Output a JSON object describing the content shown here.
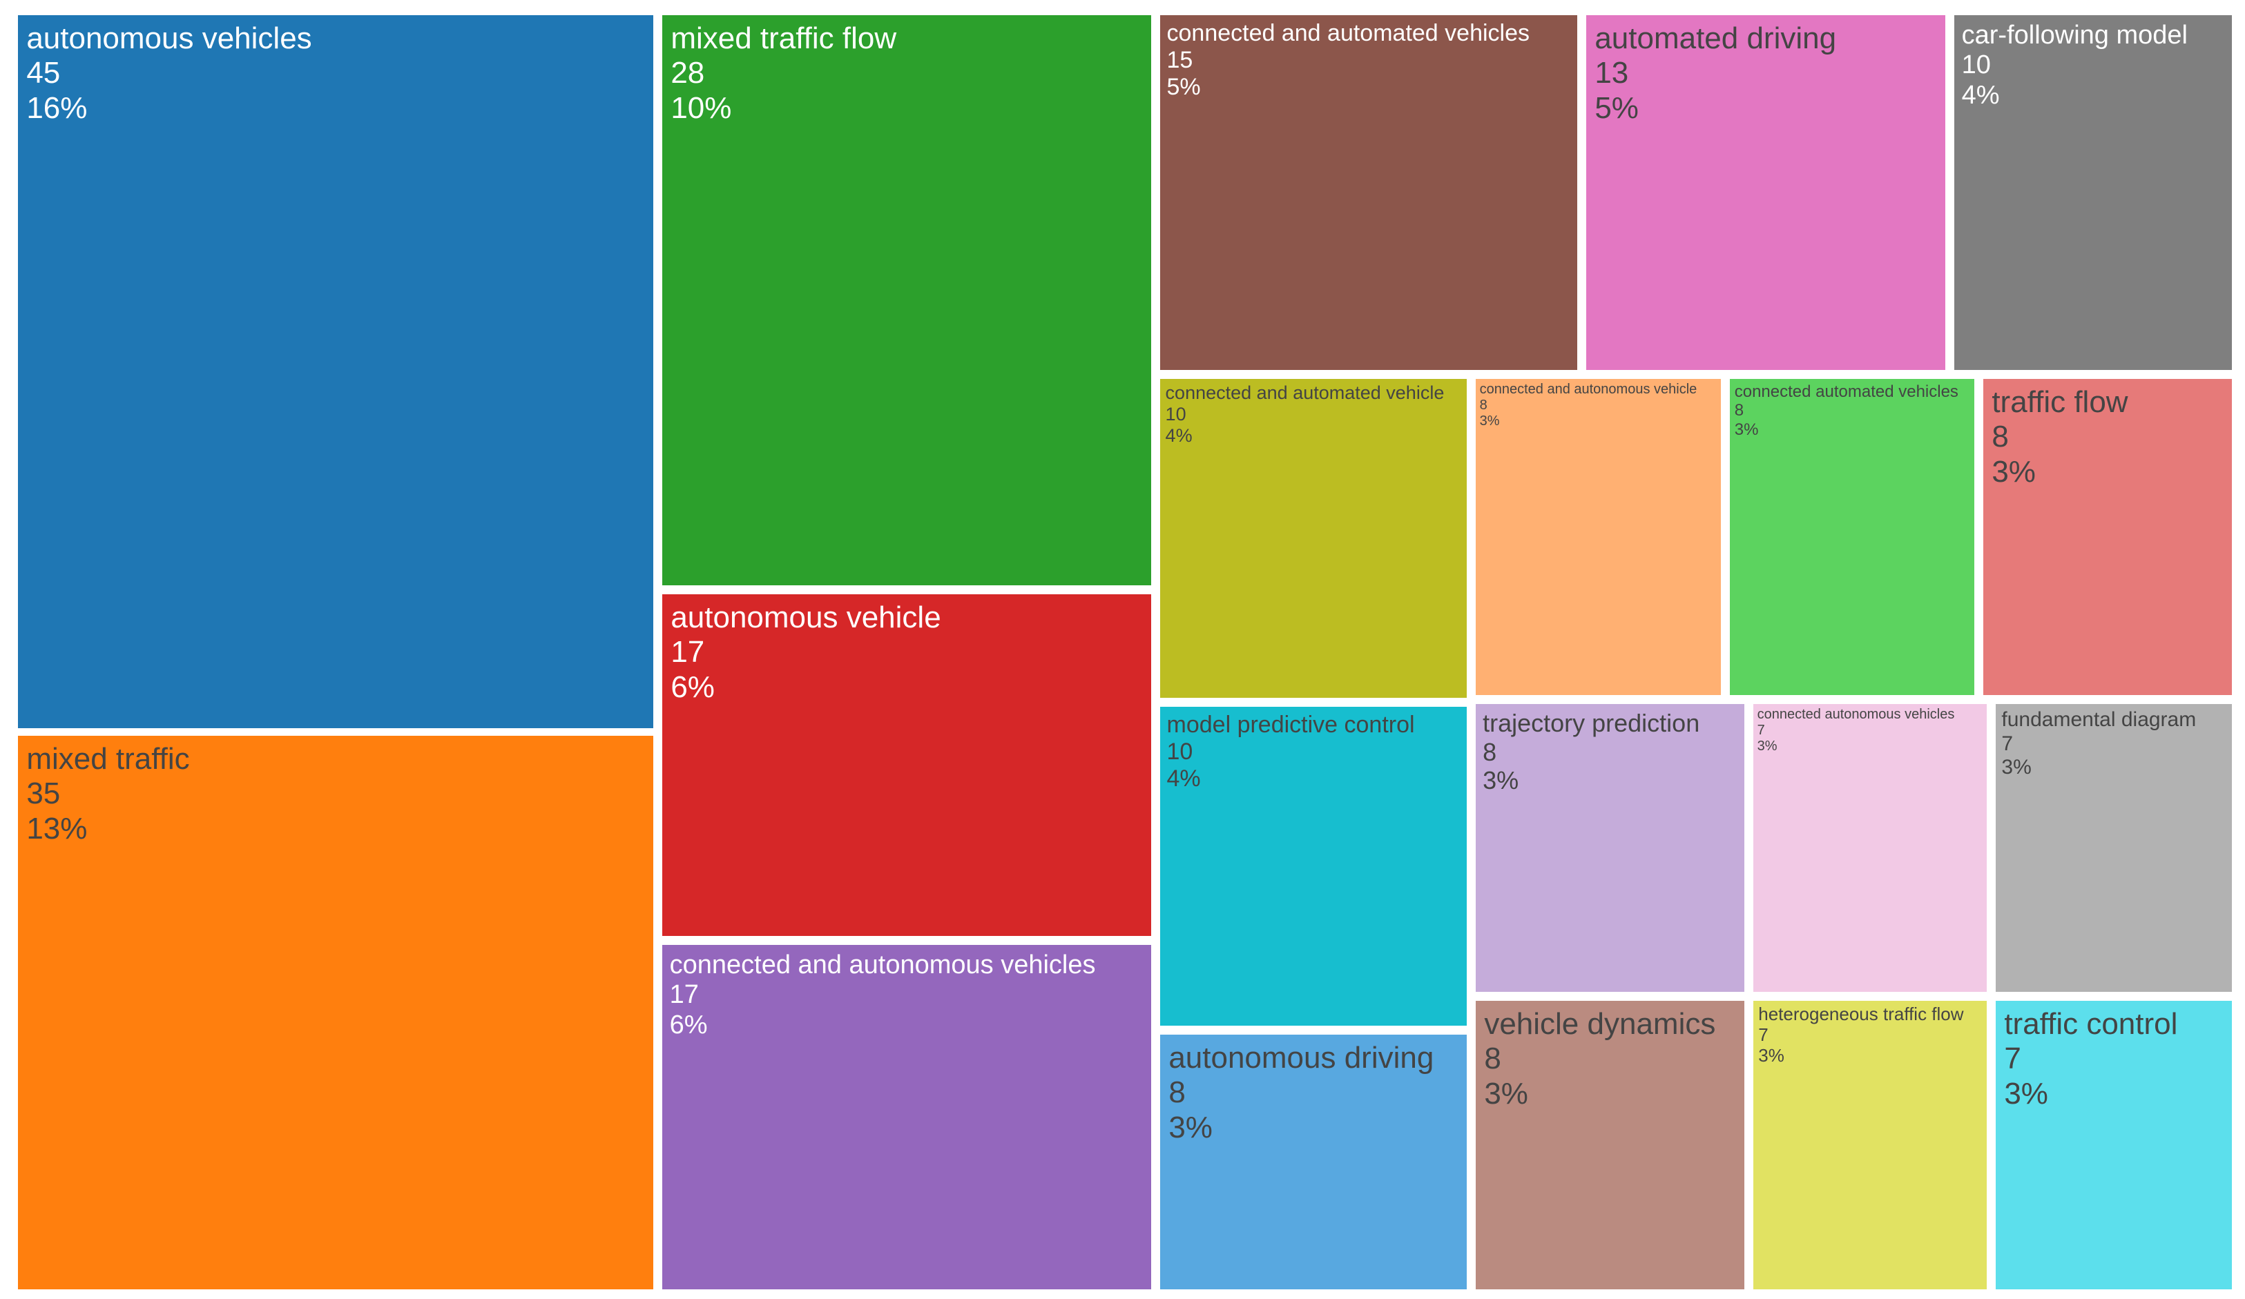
{
  "chart_data": {
    "type": "treemap",
    "items": [
      {
        "label": "autonomous vehicles",
        "value": 45,
        "percent": "16%",
        "color": "#1f77b4",
        "text_color": "#ffffff"
      },
      {
        "label": "mixed traffic",
        "value": 35,
        "percent": "13%",
        "color": "#ff7f0e",
        "text_color": "#444444"
      },
      {
        "label": "mixed traffic flow",
        "value": 28,
        "percent": "10%",
        "color": "#2ca02c",
        "text_color": "#ffffff"
      },
      {
        "label": "autonomous vehicle",
        "value": 17,
        "percent": "6%",
        "color": "#d62728",
        "text_color": "#ffffff"
      },
      {
        "label": "connected and autonomous vehicles",
        "value": 17,
        "percent": "6%",
        "color": "#9467bd",
        "text_color": "#ffffff"
      },
      {
        "label": "connected and automated vehicles",
        "value": 15,
        "percent": "5%",
        "color": "#8c564b",
        "text_color": "#ffffff"
      },
      {
        "label": "automated driving",
        "value": 13,
        "percent": "5%",
        "color": "#e377c2",
        "text_color": "#444444"
      },
      {
        "label": "car-following model",
        "value": 10,
        "percent": "4%",
        "color": "#7f7f7f",
        "text_color": "#ffffff"
      },
      {
        "label": "connected and automated vehicle",
        "value": 10,
        "percent": "4%",
        "color": "#bcbd22",
        "text_color": "#444444"
      },
      {
        "label": "connected and autonomous vehicle",
        "value": 8,
        "percent": "3%",
        "color": "#ffb072",
        "text_color": "#444444"
      },
      {
        "label": "connected automated vehicles",
        "value": 8,
        "percent": "3%",
        "color": "#5cd35f",
        "text_color": "#444444"
      },
      {
        "label": "traffic flow",
        "value": 8,
        "percent": "3%",
        "color": "#e67a79",
        "text_color": "#444444"
      },
      {
        "label": "model predictive control",
        "value": 10,
        "percent": "4%",
        "color": "#17becf",
        "text_color": "#444444"
      },
      {
        "label": "autonomous driving",
        "value": 8,
        "percent": "3%",
        "color": "#58a8e0",
        "text_color": "#444444"
      },
      {
        "label": "trajectory prediction",
        "value": 8,
        "percent": "3%",
        "color": "#c5acda",
        "text_color": "#444444"
      },
      {
        "label": "connected autonomous vehicles",
        "value": 7,
        "percent": "3%",
        "color": "#f2c9e5",
        "text_color": "#444444"
      },
      {
        "label": "fundamental diagram",
        "value": 7,
        "percent": "3%",
        "color": "#b2b2b2",
        "text_color": "#444444"
      },
      {
        "label": "vehicle dynamics",
        "value": 8,
        "percent": "3%",
        "color": "#ba8b80",
        "text_color": "#444444"
      },
      {
        "label": "heterogeneous traffic flow",
        "value": 7,
        "percent": "3%",
        "color": "#e1e262",
        "text_color": "#444444"
      },
      {
        "label": "traffic control",
        "value": 7,
        "percent": "3%",
        "color": "#5cdfec",
        "text_color": "#444444"
      }
    ]
  }
}
